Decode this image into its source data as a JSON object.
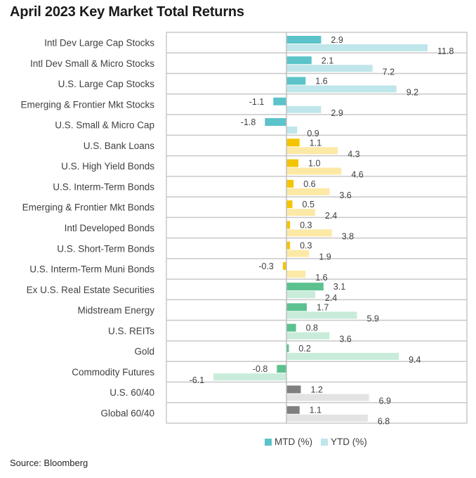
{
  "chart_data": {
    "type": "bar",
    "orientation": "horizontal",
    "title": "April 2023 Key Market Total Returns",
    "xlabel": "",
    "ylabel": "",
    "xlim": [
      -7,
      15
    ],
    "grid": "horizontal row separators",
    "legend_position": "bottom",
    "categories": [
      "Intl Dev Large Cap Stocks",
      "Intl Dev Small & Micro Stocks",
      "U.S. Large Cap Stocks",
      "Emerging & Frontier Mkt Stocks",
      "U.S. Small & Micro Cap",
      "U.S. Bank Loans",
      "U.S. High Yield Bonds",
      "U.S. Interm-Term Bonds",
      "Emerging & Frontier Mkt Bonds",
      "Intl Developed Bonds",
      "U.S. Short-Term Bonds",
      "U.S. Interm-Term Muni Bonds",
      "Ex U.S. Real Estate Securities",
      "Midstream Energy",
      "U.S. REITs",
      "Gold",
      "Commodity Futures",
      "U.S. 60/40",
      "Global 60/40"
    ],
    "series": [
      {
        "name": "MTD (%)",
        "values": [
          2.9,
          2.1,
          1.6,
          -1.1,
          -1.8,
          1.1,
          1.0,
          0.6,
          0.5,
          0.3,
          0.3,
          -0.3,
          3.1,
          1.7,
          0.8,
          0.2,
          -0.8,
          1.2,
          1.1
        ]
      },
      {
        "name": "YTD (%)",
        "values": [
          11.8,
          7.2,
          9.2,
          2.9,
          0.9,
          4.3,
          4.6,
          3.6,
          2.4,
          3.8,
          1.9,
          1.6,
          2.4,
          5.9,
          3.6,
          9.4,
          -6.1,
          6.9,
          6.8
        ]
      }
    ],
    "groups": [
      {
        "name": "equities",
        "rows": [
          0,
          1,
          2,
          3,
          4
        ],
        "mtd_color": "#5bc3c9",
        "ytd_color": "#bfe6ea"
      },
      {
        "name": "fixed-income",
        "rows": [
          5,
          6,
          7,
          8,
          9,
          10,
          11
        ],
        "mtd_color": "#f5c400",
        "ytd_color": "#fde9a6"
      },
      {
        "name": "real-assets",
        "rows": [
          12,
          13,
          14,
          15,
          16
        ],
        "mtd_color": "#5cc18f",
        "ytd_color": "#c8ecd9"
      },
      {
        "name": "balanced",
        "rows": [
          17,
          18
        ],
        "mtd_color": "#7f7f7f",
        "ytd_color": "#e3e3e3"
      }
    ],
    "legend": [
      {
        "label": "MTD (%)",
        "color": "#5bc3c9"
      },
      {
        "label": "YTD (%)",
        "color": "#bfe6ea"
      }
    ],
    "source": "Source: Bloomberg"
  }
}
